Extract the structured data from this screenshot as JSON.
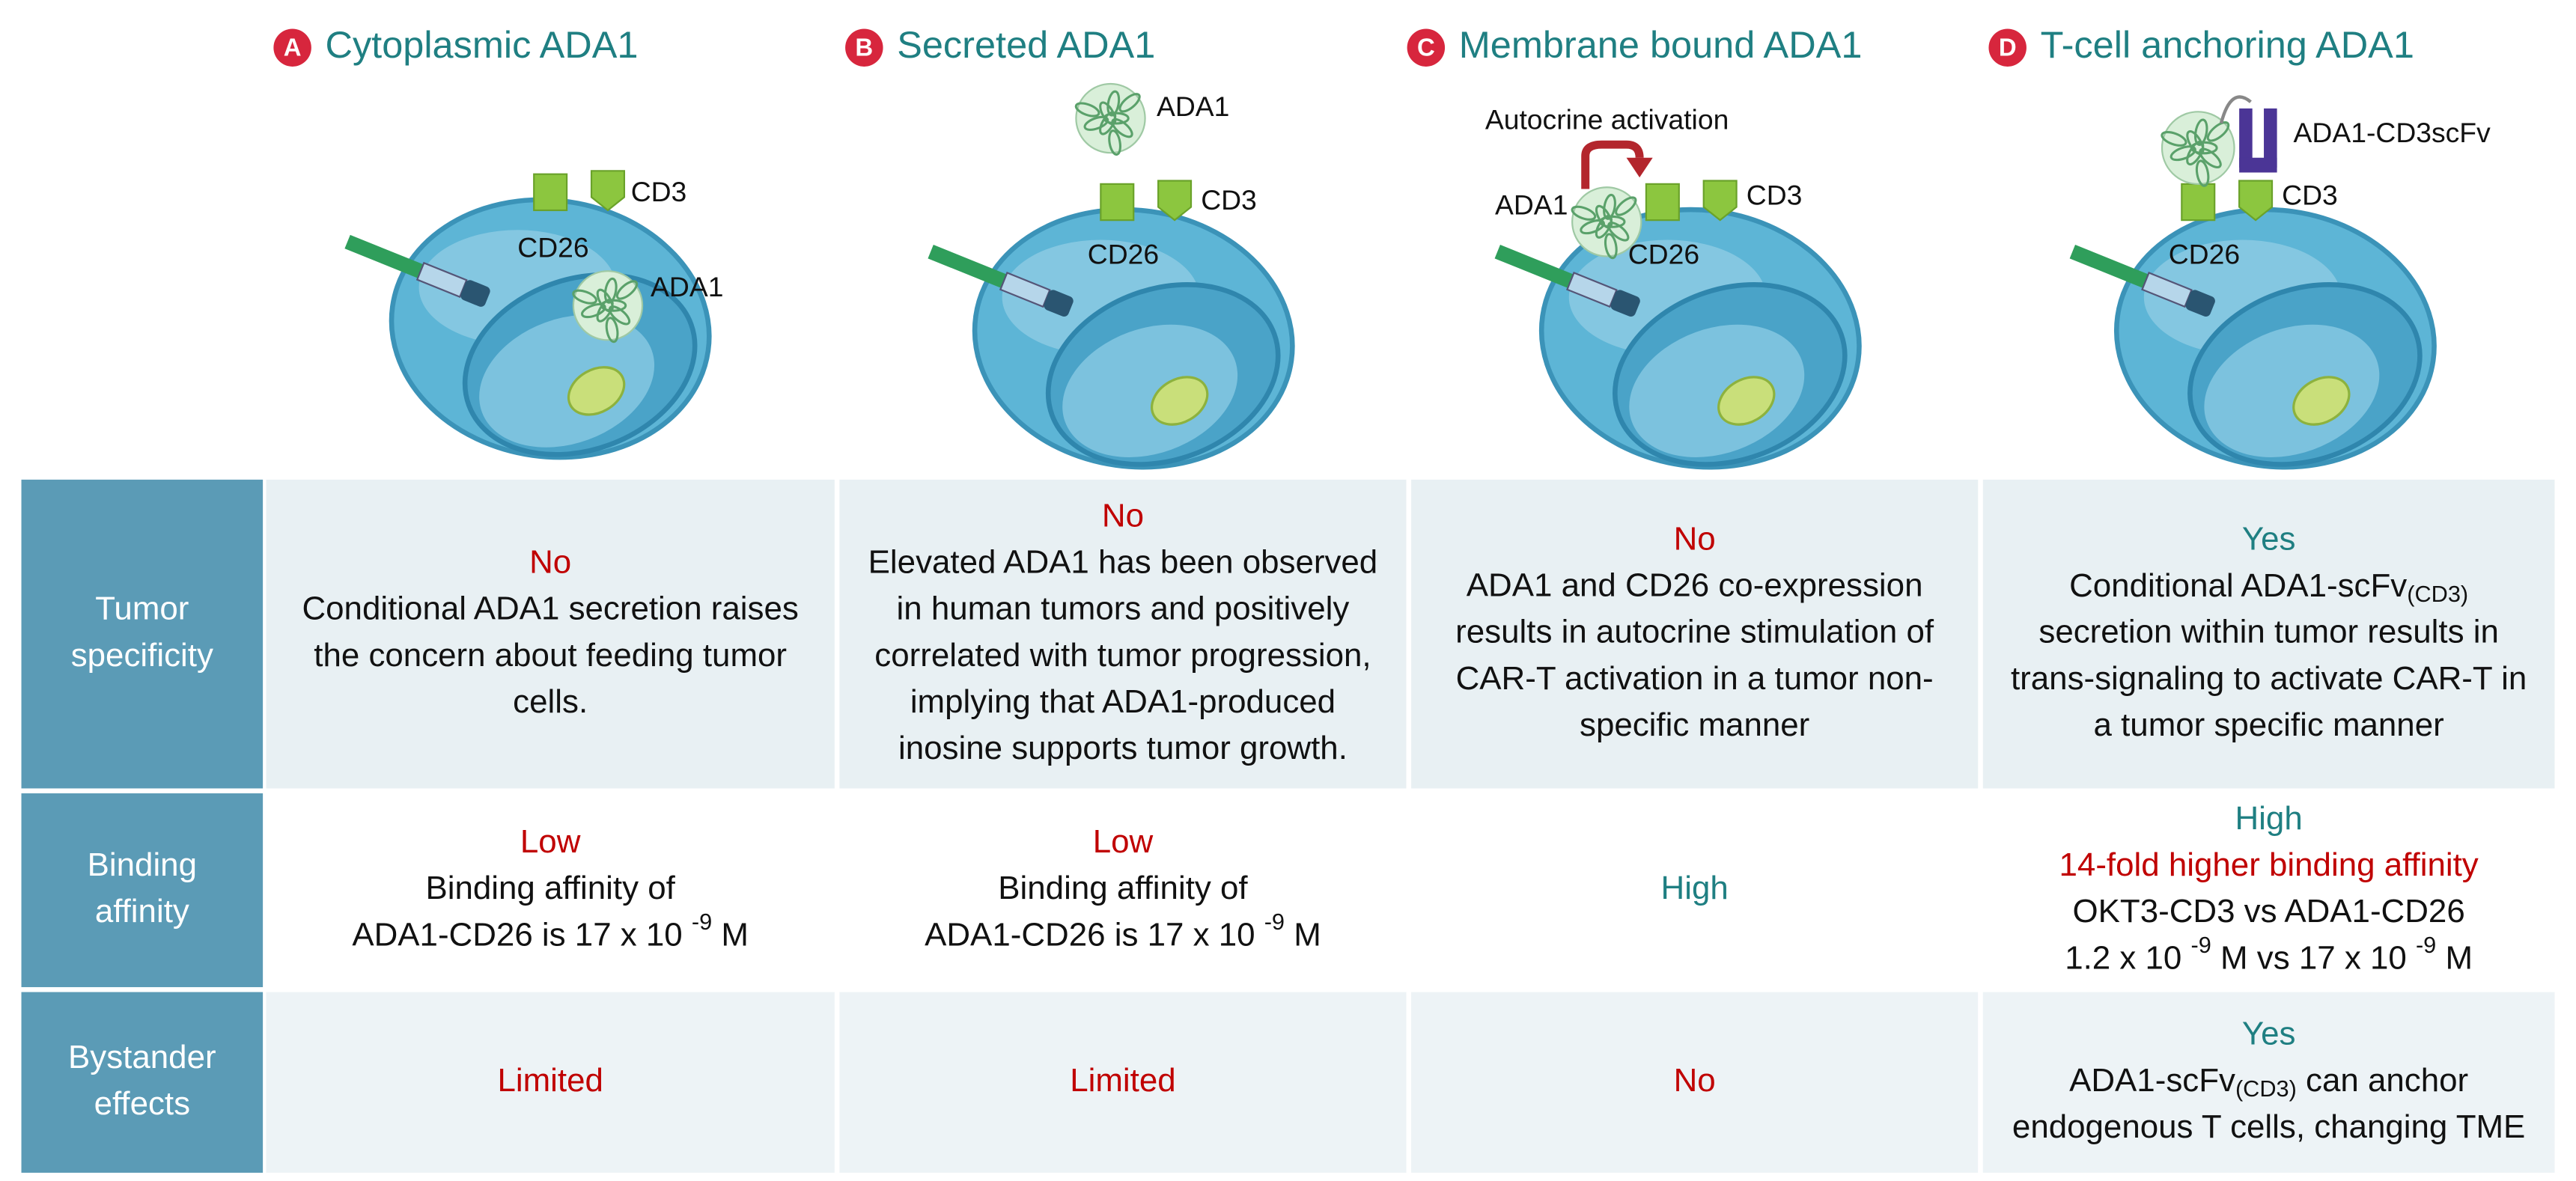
{
  "columns": [
    {
      "letter": "A",
      "title": "Cytoplasmic ADA1",
      "labels": [
        "CD3",
        "CD26",
        "ADA1"
      ]
    },
    {
      "letter": "B",
      "title": "Secreted ADA1",
      "labels": [
        "ADA1",
        "CD3",
        "CD26"
      ]
    },
    {
      "letter": "C",
      "title": "Membrane bound ADA1",
      "labels": [
        "Autocrine activation",
        "ADA1",
        "CD26",
        "CD3"
      ]
    },
    {
      "letter": "D",
      "title": "T-cell anchoring ADA1",
      "labels": [
        "ADA1-CD3scFv",
        "CD3",
        "CD26"
      ]
    }
  ],
  "table": {
    "rows": [
      {
        "header": [
          "Tumor",
          "specificity"
        ],
        "cells": [
          {
            "lines": [
              {
                "text": "No",
                "color": "#c00000"
              },
              {
                "text": "Conditional ADA1 secretion raises"
              },
              {
                "text": "the concern about feeding tumor"
              },
              {
                "text": "cells."
              }
            ]
          },
          {
            "lines": [
              {
                "text": "No",
                "color": "#c00000"
              },
              {
                "text": "Elevated ADA1 has been observed"
              },
              {
                "text": "in human tumors and positively"
              },
              {
                "text": "correlated with tumor progression,"
              },
              {
                "text": "implying that ADA1-produced"
              },
              {
                "text": "inosine supports tumor growth."
              }
            ]
          },
          {
            "lines": [
              {
                "text": "No",
                "color": "#c00000"
              },
              {
                "text": "ADA1 and CD26 co-expression"
              },
              {
                "text": "results in autocrine stimulation of"
              },
              {
                "text": "CAR-T activation in a tumor non-"
              },
              {
                "text": "specific manner"
              }
            ]
          },
          {
            "lines": [
              {
                "text": "Yes",
                "color": "#1f7f82"
              },
              {
                "parts": [
                  {
                    "text": "Conditional ADA1-scFv"
                  },
                  {
                    "text": "(CD3)",
                    "sub": true
                  }
                ]
              },
              {
                "text": "secretion within tumor results in"
              },
              {
                "text": "trans-signaling to activate CAR-T in"
              },
              {
                "text": "a tumor specific manner"
              }
            ]
          }
        ]
      },
      {
        "header": [
          "Binding",
          "affinity"
        ],
        "cells": [
          {
            "lines": [
              {
                "text": "Low",
                "color": "#c00000"
              },
              {
                "text": "Binding affinity of"
              },
              {
                "parts": [
                  {
                    "text": "ADA1-CD26 is 17 x 10 "
                  },
                  {
                    "text": "-9",
                    "sup": true
                  },
                  {
                    "text": " M"
                  }
                ]
              }
            ]
          },
          {
            "lines": [
              {
                "text": "Low",
                "color": "#c00000"
              },
              {
                "text": "Binding affinity of"
              },
              {
                "parts": [
                  {
                    "text": "ADA1-CD26 is 17 x 10 "
                  },
                  {
                    "text": "-9",
                    "sup": true
                  },
                  {
                    "text": " M"
                  }
                ]
              }
            ]
          },
          {
            "lines": [
              {
                "text": "High",
                "color": "#1f7f82"
              }
            ]
          },
          {
            "lines": [
              {
                "text": "High",
                "color": "#1f7f82"
              },
              {
                "text": "14-fold higher binding affinity",
                "color": "#c00000"
              },
              {
                "text": "OKT3-CD3 vs ADA1-CD26"
              },
              {
                "parts": [
                  {
                    "text": "1.2 x 10 "
                  },
                  {
                    "text": "-9",
                    "sup": true
                  },
                  {
                    "text": " M vs 17 x 10 "
                  },
                  {
                    "text": "-9",
                    "sup": true
                  },
                  {
                    "text": " M"
                  }
                ]
              }
            ]
          }
        ]
      },
      {
        "header": [
          "Bystander",
          "effects"
        ],
        "cells": [
          {
            "lines": [
              {
                "text": "Limited",
                "color": "#c00000"
              }
            ]
          },
          {
            "lines": [
              {
                "text": "Limited",
                "color": "#c00000"
              }
            ]
          },
          {
            "lines": [
              {
                "text": "No",
                "color": "#c00000"
              }
            ]
          },
          {
            "lines": [
              {
                "text": "Yes",
                "color": "#1f7f82"
              },
              {
                "parts": [
                  {
                    "text": "ADA1-scFv"
                  },
                  {
                    "text": "(CD3)",
                    "sub": true
                  },
                  {
                    "text": "  can anchor"
                  }
                ]
              },
              {
                "text": "endogenous T cells, changing TME"
              }
            ]
          }
        ]
      }
    ]
  }
}
